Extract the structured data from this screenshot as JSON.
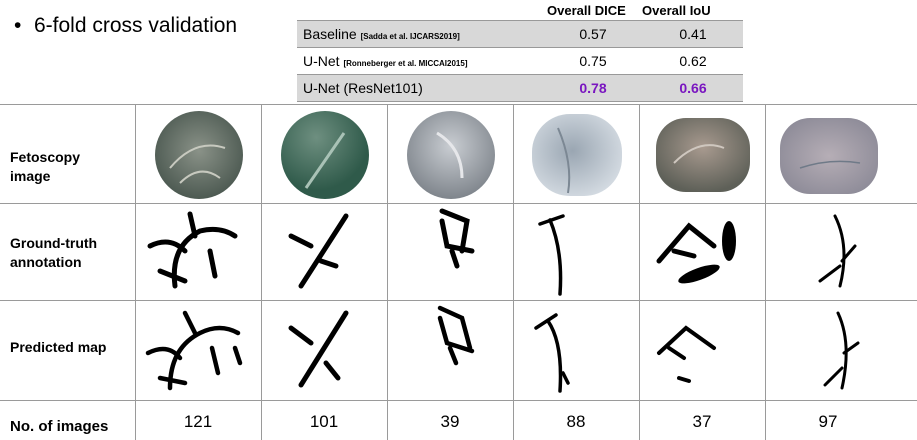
{
  "bullet": {
    "symbol": "•",
    "text": "6-fold cross validation"
  },
  "metrics": {
    "headers": [
      "Overall DICE",
      "Overall IoU"
    ],
    "rows": [
      {
        "method": "Baseline",
        "cite": "[Sadda et al. IJCARS2019]",
        "dice": "0.57",
        "iou": "0.41"
      },
      {
        "method": "U-Net",
        "cite": "[Ronneberger et al. MICCAI2015]",
        "dice": "0.75",
        "iou": "0.62"
      },
      {
        "method": "U-Net (ResNet101)",
        "cite": "",
        "dice": "0.78",
        "iou": "0.66"
      }
    ],
    "highlight_color": "#7a16c0"
  },
  "grid": {
    "row_labels": {
      "fetoscopy": [
        "Fetoscopy",
        "image"
      ],
      "ground_truth": [
        "Ground-truth",
        "annotation"
      ],
      "predicted": [
        "Predicted map"
      ]
    },
    "count_label": "No. of images",
    "counts": [
      "121",
      "101",
      "39",
      "88",
      "37",
      "97"
    ]
  }
}
